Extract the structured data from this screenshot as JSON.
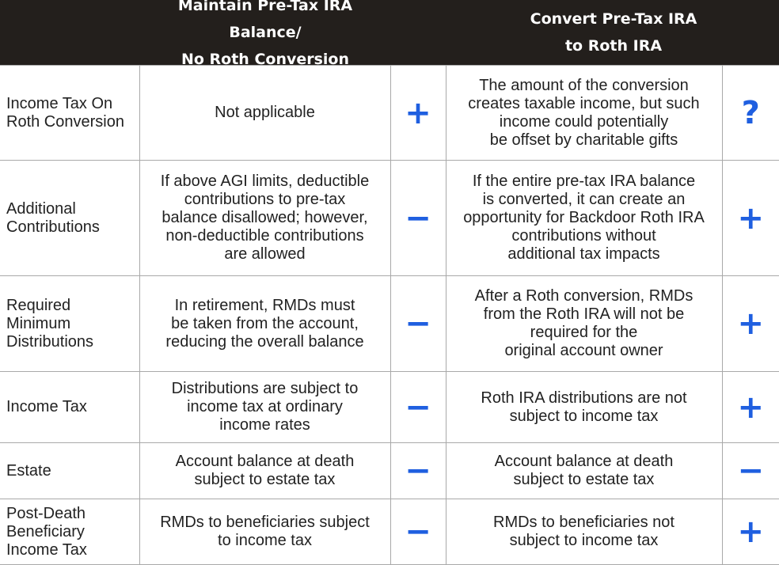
{
  "header": {
    "left": "Maintain Pre-Tax IRA Balance/\nNo Roth Conversion",
    "right": "Convert Pre-Tax IRA\nto Roth IRA"
  },
  "rows": [
    {
      "label": "Income Tax On\nRoth Conversion",
      "keep_text": "Not applicable",
      "keep_symbol": "+",
      "convert_text": "The amount of the conversion\ncreates taxable income, but such\nincome could potentially\nbe offset by charitable gifts",
      "convert_symbol": "?"
    },
    {
      "label": "Additional\nContributions",
      "keep_text": "If above AGI limits, deductible\ncontributions to pre-tax\nbalance disallowed; however,\nnon-deductible contributions\nare allowed",
      "keep_symbol": "−",
      "convert_text": "If the entire pre-tax IRA balance\nis converted, it can create an\nopportunity for Backdoor Roth IRA\ncontributions without\nadditional tax impacts",
      "convert_symbol": "+"
    },
    {
      "label": "Required\nMinimum\nDistributions",
      "keep_text": "In retirement, RMDs must\nbe taken from the account,\nreducing the overall balance",
      "keep_symbol": "−",
      "convert_text": "After a Roth conversion, RMDs\nfrom the Roth IRA will not be\nrequired for the\noriginal account owner",
      "convert_symbol": "+"
    },
    {
      "label": "Income Tax",
      "keep_text": "Distributions are subject to\nincome tax at ordinary\nincome rates",
      "keep_symbol": "−",
      "convert_text": "Roth IRA distributions are not\nsubject to income tax",
      "convert_symbol": "+"
    },
    {
      "label": "Estate",
      "keep_text": "Account balance at death\nsubject to estate tax",
      "keep_symbol": "−",
      "convert_text": "Account balance at death\nsubject to estate tax",
      "convert_symbol": "−"
    },
    {
      "label": "Post-Death\nBeneficiary\nIncome Tax",
      "keep_text": "RMDs to beneficiaries subject\nto income tax",
      "keep_symbol": "−",
      "convert_text": "RMDs to beneficiaries not\nsubject to income tax",
      "convert_symbol": "+"
    }
  ],
  "colors": {
    "header_bg": "#231f1c",
    "symbol": "#1f5fe0",
    "grid": "#a9a9a9"
  }
}
